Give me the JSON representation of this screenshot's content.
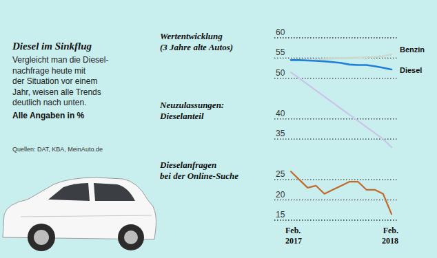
{
  "chart_data": {
    "type": "line",
    "title": "Diesel im Sinkflug",
    "subtitle": "Vergleicht man die Diesel-\nnachfrage heute mit\nder Situation vor einem\nJahr, weisen alle Trends\ndeutlich nach unten.",
    "annotations": [
      "Alle Angaben in %",
      "Quellen: DAT, KBA, MeinAuto.de",
      "Wertentwicklung\n(3 Jahre alte Autos)"
    ],
    "categories": [
      "Feb.\n2017",
      null,
      null,
      null,
      null,
      null,
      null,
      null,
      null,
      null,
      null,
      null,
      "Feb.\n2018"
    ],
    "series": [
      {
        "name": "Benzin",
        "color": "#c9d9cc",
        "values": [
          54.6,
          54.6,
          54.7,
          54.7,
          54.8,
          54.9,
          55.0,
          55.0,
          55.1,
          55.2,
          55.3,
          55.5,
          55.9
        ]
      },
      {
        "name": "Diesel",
        "color": "#1f7fd6",
        "values": [
          54.5,
          54.5,
          54.4,
          54.3,
          54.2,
          54.0,
          53.8,
          53.4,
          53.3,
          53.3,
          53.0,
          52.6,
          52.2
        ]
      },
      {
        "name": "Neuzulassungen:\nDieselanteil",
        "color": "#cac4e8",
        "values": [
          51.5,
          50.0,
          48.5,
          47.0,
          45.5,
          44.0,
          42.5,
          41.0,
          39.5,
          38.0,
          36.5,
          35.0,
          33.0
        ]
      },
      {
        "name": "Dieselanfragen\nbei der Online-Suche",
        "color": "#c2692b",
        "values": [
          27.0,
          25.0,
          23.0,
          23.5,
          21.5,
          22.5,
          23.5,
          24.5,
          24.5,
          22.5,
          22.5,
          21.5,
          16.5
        ]
      }
    ],
    "ylim": [
      15,
      60
    ],
    "yticks": [
      60,
      55,
      50,
      40,
      35,
      25,
      20,
      15
    ],
    "grid": true
  }
}
